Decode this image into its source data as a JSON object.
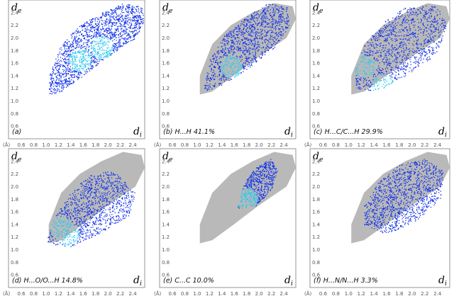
{
  "figure": {
    "axis_symbols": {
      "y": "d",
      "y_sub": "e",
      "x": "d",
      "x_sub": "i",
      "unit": "(Å)"
    }
  },
  "colors": {
    "full_fingerprint": "#b9b9b9",
    "highlight_low": "#1030e8",
    "highlight_high": "#28c8f0",
    "frame": "#7a7a7a"
  },
  "chart_data": [
    {
      "type": "scatter",
      "caption": "(a)",
      "xlim": [
        0.4,
        2.6
      ],
      "ylim": [
        0.4,
        2.6
      ],
      "x_ticks": [
        "0.6",
        "0.8",
        "1.0",
        "1.2",
        "1.4",
        "1.6",
        "1.8",
        "2.0",
        "2.2",
        "2.4"
      ],
      "y_ticks": [
        "0.6",
        "0.8",
        "1.0",
        "1.2",
        "1.4",
        "1.6",
        "1.8",
        "2.0",
        "2.2",
        "2.4"
      ],
      "contact": "all",
      "percent": null,
      "region": [
        [
          1.05,
          1.1
        ],
        [
          1.25,
          1.15
        ],
        [
          1.6,
          1.4
        ],
        [
          2.0,
          1.7
        ],
        [
          2.45,
          2.0
        ],
        [
          2.6,
          2.3
        ],
        [
          2.55,
          2.5
        ],
        [
          2.25,
          2.55
        ],
        [
          1.9,
          2.4
        ],
        [
          1.55,
          2.2
        ],
        [
          1.25,
          1.9
        ],
        [
          1.05,
          1.4
        ]
      ],
      "hotspots": [
        [
          1.9,
          1.85
        ],
        [
          1.55,
          1.65
        ]
      ]
    },
    {
      "type": "scatter",
      "caption": "(b)  H...H  41.1%",
      "xlim": [
        0.4,
        2.6
      ],
      "ylim": [
        0.4,
        2.6
      ],
      "x_ticks": [
        "0.6",
        "0.8",
        "1.0",
        "1.2",
        "1.4",
        "1.6",
        "1.8",
        "2.0",
        "2.2",
        "2.4"
      ],
      "y_ticks": [
        "0.6",
        "0.8",
        "1.0",
        "1.2",
        "1.4",
        "1.6",
        "1.8",
        "2.0",
        "2.2",
        "2.4"
      ],
      "contact": "H...H",
      "percent": 41.1,
      "region": [
        [
          1.1,
          1.15
        ],
        [
          1.4,
          1.25
        ],
        [
          1.8,
          1.5
        ],
        [
          2.25,
          1.85
        ],
        [
          2.5,
          2.2
        ],
        [
          2.45,
          2.5
        ],
        [
          2.15,
          2.55
        ],
        [
          1.8,
          2.35
        ],
        [
          1.45,
          2.05
        ],
        [
          1.2,
          1.65
        ]
      ],
      "hotspots": [
        [
          1.55,
          1.55
        ]
      ]
    },
    {
      "type": "scatter",
      "caption": "(c)  H...C/C...H  29.9%",
      "xlim": [
        0.4,
        2.6
      ],
      "ylim": [
        0.4,
        2.6
      ],
      "x_ticks": [
        "0.6",
        "0.8",
        "1.0",
        "1.2",
        "1.4",
        "1.6",
        "1.8",
        "2.0",
        "2.2",
        "2.4"
      ],
      "y_ticks": [
        "0.6",
        "0.8",
        "1.0",
        "1.2",
        "1.4",
        "1.6",
        "1.8",
        "2.0",
        "2.2",
        "2.4"
      ],
      "contact": "H...C/C...H",
      "percent": 29.9,
      "region": [
        [
          1.1,
          1.2
        ],
        [
          1.45,
          1.15
        ],
        [
          1.9,
          1.4
        ],
        [
          2.4,
          1.75
        ],
        [
          2.55,
          2.2
        ],
        [
          2.4,
          2.5
        ],
        [
          2.0,
          2.55
        ],
        [
          1.6,
          2.3
        ],
        [
          1.25,
          1.9
        ],
        [
          1.1,
          1.5
        ]
      ],
      "hotspots": [
        [
          1.55,
          1.25
        ],
        [
          1.25,
          1.55
        ]
      ]
    },
    {
      "type": "scatter",
      "caption": "(d)  H...O/O...H  14.8%",
      "xlim": [
        0.4,
        2.6
      ],
      "ylim": [
        0.4,
        2.6
      ],
      "x_ticks": [
        "0.6",
        "0.8",
        "1.0",
        "1.2",
        "1.4",
        "1.6",
        "1.8",
        "2.0",
        "2.2",
        "2.4"
      ],
      "y_ticks": [
        "0.6",
        "0.8",
        "1.0",
        "1.2",
        "1.4",
        "1.6",
        "1.8",
        "2.0",
        "2.2",
        "2.4"
      ],
      "contact": "H...O/O...H",
      "percent": 14.8,
      "region": [
        [
          1.0,
          1.1
        ],
        [
          1.4,
          1.05
        ],
        [
          1.85,
          1.25
        ],
        [
          2.35,
          1.55
        ],
        [
          2.45,
          1.9
        ],
        [
          2.1,
          2.25
        ],
        [
          1.7,
          2.2
        ],
        [
          1.35,
          1.85
        ],
        [
          1.1,
          1.45
        ]
      ],
      "hotspots": [
        [
          1.25,
          1.35
        ],
        [
          1.35,
          1.25
        ]
      ]
    },
    {
      "type": "scatter",
      "caption": "(e)  C...C  10.0%",
      "xlim": [
        0.4,
        2.6
      ],
      "ylim": [
        0.4,
        2.6
      ],
      "x_ticks": [
        "0.6",
        "0.8",
        "1.0",
        "1.2",
        "1.4",
        "1.6",
        "1.8",
        "2.0",
        "2.2",
        "2.4"
      ],
      "y_ticks": [
        "0.6",
        "0.8",
        "1.0",
        "1.2",
        "1.4",
        "1.6",
        "1.8",
        "2.0",
        "2.2",
        "2.4"
      ],
      "contact": "C...C",
      "percent": 10.0,
      "region": [
        [
          1.65,
          1.65
        ],
        [
          1.95,
          1.7
        ],
        [
          2.2,
          1.95
        ],
        [
          2.3,
          2.25
        ],
        [
          2.2,
          2.45
        ],
        [
          1.95,
          2.3
        ],
        [
          1.75,
          2.05
        ]
      ],
      "hotspots": [
        [
          1.8,
          1.8
        ]
      ]
    },
    {
      "type": "scatter",
      "caption": "(f)  H...N/N...H  3.3%",
      "xlim": [
        0.4,
        2.6
      ],
      "ylim": [
        0.4,
        2.6
      ],
      "x_ticks": [
        "0.6",
        "0.8",
        "1.0",
        "1.2",
        "1.4",
        "1.6",
        "1.8",
        "2.0",
        "2.2",
        "2.4"
      ],
      "y_ticks": [
        "0.6",
        "0.8",
        "1.0",
        "1.2",
        "1.4",
        "1.6",
        "1.8",
        "2.0",
        "2.2",
        "2.4"
      ],
      "contact": "H...N/N...H",
      "percent": 3.3,
      "region": [
        [
          1.25,
          1.4
        ],
        [
          1.6,
          1.25
        ],
        [
          2.05,
          1.45
        ],
        [
          2.45,
          1.8
        ],
        [
          2.5,
          2.25
        ],
        [
          2.2,
          2.45
        ],
        [
          1.8,
          2.35
        ],
        [
          1.45,
          2.05
        ],
        [
          1.25,
          1.7
        ]
      ],
      "hotspots": []
    }
  ]
}
